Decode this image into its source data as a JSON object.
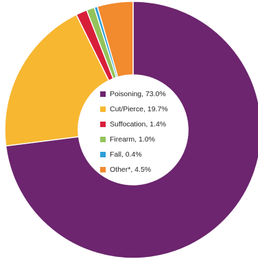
{
  "chart_data": {
    "type": "pie",
    "title": "",
    "series": [
      {
        "name": "Poisoning",
        "value": 73.0,
        "label": "Poisoning, 73.0%",
        "color": "#6C256E"
      },
      {
        "name": "Cut/Pierce",
        "value": 19.7,
        "label": "Cut/Pierce, 19.7%",
        "color": "#F7B731"
      },
      {
        "name": "Suffocation",
        "value": 1.4,
        "label": "Suffocation, 1.4%",
        "color": "#D81F3A"
      },
      {
        "name": "Firearm",
        "value": 1.0,
        "label": "Firearm, 1.0%",
        "color": "#93C35A"
      },
      {
        "name": "Fall",
        "value": 0.4,
        "label": "Fall, 0.4%",
        "color": "#2E9ED8"
      },
      {
        "name": "Other*",
        "value": 4.5,
        "label": "Other*, 4.5%",
        "color": "#F28A2E"
      }
    ],
    "legend": "center",
    "donut": true
  }
}
